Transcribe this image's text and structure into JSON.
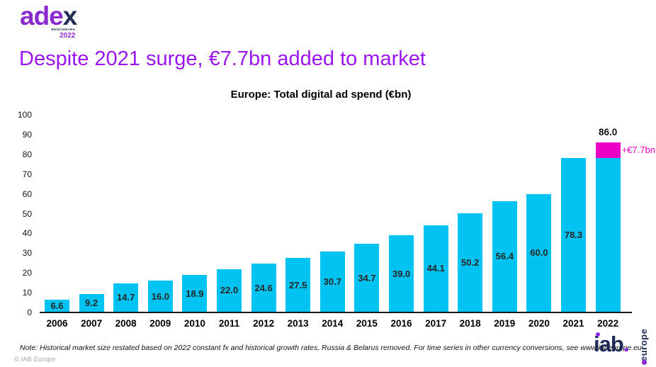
{
  "logo": {
    "text_main": "ade",
    "text_accent": "x",
    "sub_label": "BENCHMARK",
    "sub_year": "2022"
  },
  "headline": "Despite 2021 surge, €7.7bn added to market",
  "chart_data": {
    "type": "bar",
    "title": "Europe: Total digital ad spend (€bn)",
    "categories": [
      "2006",
      "2007",
      "2008",
      "2009",
      "2010",
      "2011",
      "2012",
      "2013",
      "2014",
      "2015",
      "2016",
      "2017",
      "2018",
      "2019",
      "2020",
      "2021",
      "2022"
    ],
    "values": [
      6.6,
      9.2,
      14.7,
      16.0,
      18.9,
      22.0,
      24.6,
      27.5,
      30.7,
      34.7,
      39.0,
      44.1,
      50.2,
      56.4,
      60.0,
      78.3,
      86.0
    ],
    "bar_labels": [
      "6.6",
      "9.2",
      "14.7",
      "16.0",
      "18.9",
      "22.0",
      "24.6",
      "27.5",
      "30.7",
      "34.7",
      "39.0",
      "44.1",
      "50.2",
      "56.4",
      "60.0",
      "78.3",
      ""
    ],
    "highlight": {
      "category": "2022",
      "base_value": 78.3,
      "increment": 7.7,
      "total_label": "86.0",
      "increment_label": "+€7.7bn"
    },
    "xlabel": "",
    "ylabel": "",
    "ylim": [
      0,
      100
    ],
    "yticks": [
      0,
      10,
      20,
      30,
      40,
      50,
      60,
      70,
      80,
      90,
      100
    ],
    "grid": false,
    "legend": "none"
  },
  "footnote": "Note: Historical market size restated based on 2022 constant fx and historical growth rates, Russia & Belarus removed. For time series in other currency conversions, see www.iabeurope.eu",
  "copyright": "© IAB Europe",
  "iab_logo": {
    "text": "iab",
    "suffix": ".",
    "vertical_text": "europe"
  },
  "colors": {
    "headline_purple": "#9916F0",
    "logo_purple": "#8A2BD0",
    "logo_navy": "#272E55",
    "bar_cyan": "#00C3F2",
    "highlight_magenta": "#EC00C8",
    "iab_navy": "#1F2A56",
    "iab_purple": "#8E2BD8"
  }
}
